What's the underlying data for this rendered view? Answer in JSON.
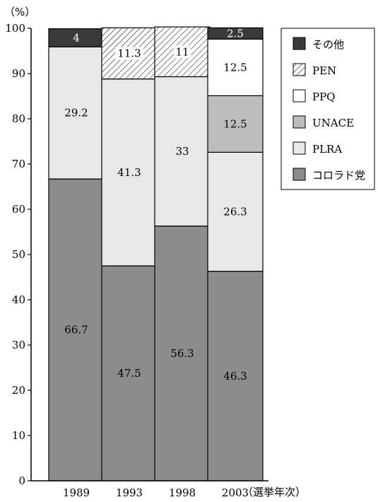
{
  "chart_data": {
    "type": "bar",
    "stacked": true,
    "y_unit_label": "（%）",
    "x_unit_label": "（選挙年次）",
    "ylim": [
      0,
      100
    ],
    "yticks": [
      0,
      10,
      20,
      30,
      40,
      50,
      60,
      70,
      80,
      90,
      100
    ],
    "categories": [
      "1989",
      "1993",
      "1998",
      "2003"
    ],
    "series": [
      {
        "name": "コロラド党",
        "values": [
          66.7,
          47.5,
          56.3,
          46.3
        ],
        "labels": [
          "66.7",
          "47.5",
          "56.3",
          "46.3"
        ],
        "color": "#8c8c8c",
        "pattern": "solid"
      },
      {
        "name": "PLRA",
        "values": [
          29.2,
          41.3,
          33,
          26.3
        ],
        "labels": [
          "29.2",
          "41.3",
          "33",
          "26.3"
        ],
        "color": "#e8e8e8",
        "pattern": "solid"
      },
      {
        "name": "UNACE",
        "values": [
          0,
          0,
          0,
          12.5
        ],
        "labels": [
          "",
          "",
          "",
          "12.5"
        ],
        "color": "#bdbdbd",
        "pattern": "solid"
      },
      {
        "name": "PPQ",
        "values": [
          0,
          0,
          0,
          12.5
        ],
        "labels": [
          "",
          "",
          "",
          "12.5"
        ],
        "color": "#ffffff",
        "pattern": "solid"
      },
      {
        "name": "PEN",
        "values": [
          0,
          11.3,
          11,
          0
        ],
        "labels": [
          "",
          "11.3",
          "11",
          ""
        ],
        "color": "#ffffff",
        "pattern": "hatch"
      },
      {
        "name": "その他",
        "values": [
          4,
          0,
          0,
          2.5
        ],
        "labels": [
          "4",
          "",
          "",
          "2.5"
        ],
        "color": "#3a3a3a",
        "pattern": "solid"
      }
    ],
    "legend": {
      "placement": "top-right",
      "order": [
        "その他",
        "PEN",
        "PPQ",
        "UNACE",
        "PLRA",
        "コロラド党"
      ]
    },
    "grid": false
  }
}
